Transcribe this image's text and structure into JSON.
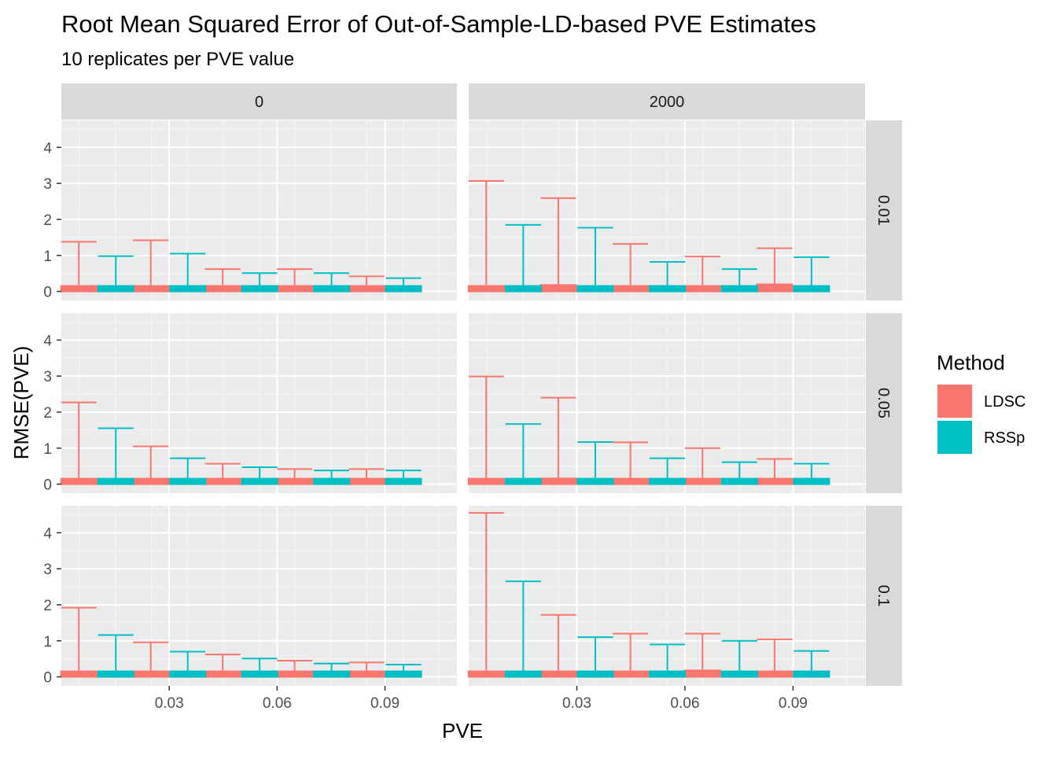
{
  "colors": {
    "LDSC": "#F8766D",
    "RSSp": "#00BFC4",
    "panel_bg": "#EBEBEB",
    "strip_bg": "#D9D9D9",
    "grid_major": "#FFFFFF",
    "grid_minor": "#F5F5F5"
  },
  "chart_data": {
    "type": "bar",
    "title": "Root Mean Squared Error of Out-of-Sample-LD-based PVE Estimates",
    "subtitle": "10 replicates per PVE value",
    "xlabel": "PVE",
    "ylabel": "RMSE(PVE)",
    "col_facets": [
      "0",
      "2000"
    ],
    "row_facets": [
      "0.01",
      "0.05",
      "0.1"
    ],
    "x_ticks": [
      0.03,
      0.06,
      0.09
    ],
    "x_tick_labels": [
      "0.03",
      "0.06",
      "0.09"
    ],
    "xlim": [
      0.0,
      0.11
    ],
    "y_ticks": [
      0,
      1,
      2,
      3,
      4
    ],
    "y_tick_labels": [
      "0",
      "1",
      "2",
      "3",
      "4"
    ],
    "ylim": [
      -0.25,
      4.75
    ],
    "x_groups": [
      0.01,
      0.03,
      0.05,
      0.07,
      0.09
    ],
    "legend": {
      "title": "Method",
      "entries": [
        "LDSC",
        "RSSp"
      ],
      "position": "right"
    },
    "panels": [
      {
        "col": "0",
        "row": "0.01",
        "series": [
          {
            "method": "LDSC",
            "values": [
              0.07,
              0.12,
              0.09,
              0.1,
              0.09
            ],
            "upper": [
              1.38,
              1.42,
              0.62,
              0.62,
              0.42
            ]
          },
          {
            "method": "RSSp",
            "values": [
              0.06,
              0.1,
              0.07,
              0.07,
              0.07
            ],
            "upper": [
              0.98,
              1.05,
              0.51,
              0.51,
              0.37
            ]
          }
        ]
      },
      {
        "col": "2000",
        "row": "0.01",
        "series": [
          {
            "method": "LDSC",
            "values": [
              0.12,
              0.2,
              0.15,
              0.15,
              0.22
            ],
            "upper": [
              3.07,
              2.59,
              1.32,
              0.97,
              1.2
            ]
          },
          {
            "method": "RSSp",
            "values": [
              0.1,
              0.15,
              0.1,
              0.1,
              0.17
            ],
            "upper": [
              1.85,
              1.77,
              0.82,
              0.62,
              0.95
            ]
          }
        ]
      },
      {
        "col": "0",
        "row": "0.05",
        "series": [
          {
            "method": "LDSC",
            "values": [
              0.1,
              0.09,
              0.08,
              0.08,
              0.09
            ],
            "upper": [
              2.27,
              1.05,
              0.57,
              0.42,
              0.42
            ]
          },
          {
            "method": "RSSp",
            "values": [
              0.08,
              0.07,
              0.06,
              0.06,
              0.06
            ],
            "upper": [
              1.55,
              0.72,
              0.47,
              0.38,
              0.38
            ]
          }
        ]
      },
      {
        "col": "2000",
        "row": "0.05",
        "series": [
          {
            "method": "LDSC",
            "values": [
              0.11,
              0.18,
              0.12,
              0.14,
              0.12
            ],
            "upper": [
              2.99,
              2.4,
              1.16,
              1.0,
              0.7
            ]
          },
          {
            "method": "RSSp",
            "values": [
              0.08,
              0.11,
              0.09,
              0.09,
              0.1
            ],
            "upper": [
              1.67,
              1.17,
              0.72,
              0.61,
              0.57
            ]
          }
        ]
      },
      {
        "col": "0",
        "row": "0.1",
        "series": [
          {
            "method": "LDSC",
            "values": [
              0.08,
              0.09,
              0.08,
              0.08,
              0.08
            ],
            "upper": [
              1.92,
              0.96,
              0.62,
              0.45,
              0.4
            ]
          },
          {
            "method": "RSSp",
            "values": [
              0.06,
              0.07,
              0.06,
              0.06,
              0.06
            ],
            "upper": [
              1.16,
              0.7,
              0.51,
              0.37,
              0.34
            ]
          }
        ]
      },
      {
        "col": "2000",
        "row": "0.1",
        "series": [
          {
            "method": "LDSC",
            "values": [
              0.17,
              0.15,
              0.13,
              0.2,
              0.17
            ],
            "upper": [
              4.55,
              1.72,
              1.2,
              1.2,
              1.04
            ]
          },
          {
            "method": "RSSp",
            "values": [
              0.12,
              0.11,
              0.1,
              0.16,
              0.12
            ],
            "upper": [
              2.65,
              1.1,
              0.9,
              1.0,
              0.72
            ]
          }
        ]
      }
    ]
  }
}
